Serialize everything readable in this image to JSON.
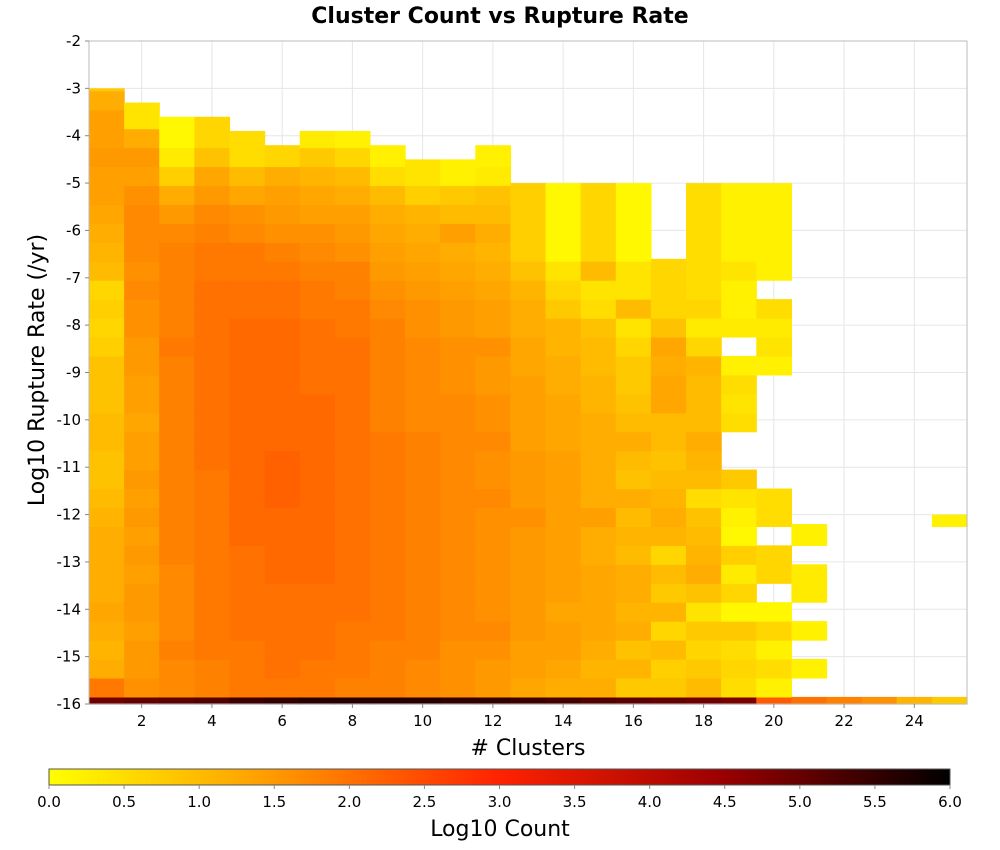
{
  "chart_data": {
    "type": "heatmap",
    "title": "Cluster Count vs Rupture Rate",
    "xlabel": "# Clusters",
    "ylabel": "Log10 Rupture Rate (/yr)",
    "colorbar_label": "Log10 Count",
    "xlim": [
      0.5,
      25.5
    ],
    "ylim": [
      -16,
      -2
    ],
    "x_ticks": [
      2,
      4,
      6,
      8,
      10,
      12,
      14,
      16,
      18,
      20,
      22,
      24
    ],
    "y_ticks": [
      -2,
      -3,
      -4,
      -5,
      -6,
      -7,
      -8,
      -9,
      -10,
      -11,
      -12,
      -13,
      -14,
      -15,
      -16
    ],
    "colorbar_ticks": [
      "0.0",
      "0.5",
      "1.0",
      "1.5",
      "2.0",
      "2.5",
      "3.0",
      "3.5",
      "4.0",
      "4.5",
      "5.0",
      "5.5",
      "6.0"
    ],
    "color_range": [
      0,
      6
    ],
    "colormap": [
      "#ffff00",
      "#ff9900",
      "#ff2200",
      "#990000",
      "#000000"
    ],
    "grid": true,
    "y_bin_width": 0.4,
    "columns": [
      {
        "x": 1,
        "ymax": -3.0,
        "values": [
          4.9,
          1.9,
          1.2,
          1.1,
          1.2,
          1.3,
          1.2,
          1.2,
          1.2,
          1.2,
          1.1,
          1.0,
          0.9,
          0.9,
          1.0,
          1.0,
          0.9,
          0.9,
          0.9,
          0.7,
          0.6,
          0.7,
          0.6,
          1.0,
          1.1,
          1.2,
          1.3,
          1.4,
          1.4,
          1.5,
          1.4,
          1.4,
          1.2,
          0.8,
          0.3
        ]
      },
      {
        "x": 2,
        "ymax": -3.3,
        "values": [
          5.0,
          1.6,
          1.5,
          1.5,
          1.4,
          1.5,
          1.5,
          1.4,
          1.5,
          1.4,
          1.5,
          1.4,
          1.5,
          1.4,
          1.4,
          1.3,
          1.4,
          1.4,
          1.5,
          1.5,
          1.6,
          1.6,
          1.7,
          1.6,
          1.7,
          1.7,
          1.7,
          1.6,
          1.4,
          1.5,
          1.2,
          0.4
        ]
      },
      {
        "x": 3,
        "ymax": -3.6,
        "values": [
          5.1,
          1.7,
          1.7,
          1.8,
          1.7,
          1.7,
          1.7,
          1.7,
          1.8,
          1.8,
          1.8,
          1.8,
          1.8,
          1.8,
          1.8,
          1.8,
          1.8,
          1.8,
          1.8,
          1.9,
          1.8,
          1.8,
          1.8,
          1.8,
          1.8,
          1.7,
          1.5,
          1.2,
          0.7,
          0.3,
          0.1
        ]
      },
      {
        "x": 4,
        "ymax": -3.6,
        "values": [
          5.2,
          1.8,
          1.8,
          1.9,
          1.9,
          1.9,
          1.9,
          1.9,
          1.9,
          1.9,
          1.9,
          1.9,
          1.9,
          2.0,
          2.0,
          2.0,
          2.0,
          2.0,
          2.0,
          2.0,
          2.0,
          2.0,
          2.0,
          1.9,
          1.9,
          1.8,
          1.7,
          1.5,
          1.3,
          0.9,
          0.6
        ]
      },
      {
        "x": 5,
        "ymax": -3.9,
        "values": [
          5.4,
          1.9,
          1.9,
          1.9,
          2.0,
          2.0,
          2.0,
          2.0,
          2.0,
          2.1,
          2.1,
          2.1,
          2.1,
          2.1,
          2.1,
          2.1,
          2.1,
          2.1,
          2.1,
          2.1,
          2.1,
          2.0,
          2.0,
          1.9,
          1.9,
          1.7,
          1.6,
          1.3,
          1.0,
          0.5
        ]
      },
      {
        "x": 6,
        "ymax": -4.2,
        "values": [
          5.5,
          1.9,
          2.0,
          2.0,
          2.0,
          2.0,
          2.0,
          2.1,
          2.1,
          2.1,
          2.1,
          2.2,
          2.2,
          2.2,
          2.1,
          2.1,
          2.1,
          2.1,
          2.1,
          2.1,
          2.1,
          2.0,
          2.0,
          1.9,
          1.8,
          1.6,
          1.5,
          1.4,
          1.2,
          0.6
        ]
      },
      {
        "x": 7,
        "ymax": -3.9,
        "values": [
          5.6,
          1.9,
          1.9,
          2.0,
          2.0,
          2.0,
          2.0,
          2.1,
          2.1,
          2.1,
          2.1,
          2.1,
          2.1,
          2.1,
          2.1,
          2.1,
          2.1,
          2.0,
          2.0,
          2.0,
          2.0,
          1.9,
          1.9,
          1.8,
          1.7,
          1.6,
          1.4,
          1.3,
          1.1,
          0.8,
          0.3
        ]
      },
      {
        "x": 8,
        "ymax": -3.9,
        "values": [
          5.6,
          1.8,
          1.9,
          1.9,
          1.9,
          2.0,
          2.0,
          2.0,
          2.0,
          2.0,
          2.0,
          2.0,
          2.0,
          2.0,
          2.0,
          2.0,
          2.0,
          2.0,
          2.0,
          2.0,
          1.9,
          1.9,
          1.8,
          1.8,
          1.6,
          1.5,
          1.4,
          1.2,
          1.0,
          0.6,
          0.2
        ]
      },
      {
        "x": 9,
        "ymax": -4.2,
        "values": [
          5.6,
          1.8,
          1.8,
          1.8,
          1.9,
          1.9,
          1.9,
          1.9,
          1.9,
          1.9,
          1.9,
          1.9,
          1.9,
          1.9,
          1.9,
          1.8,
          1.8,
          1.8,
          1.8,
          1.8,
          1.8,
          1.7,
          1.6,
          1.5,
          1.4,
          1.3,
          1.2,
          1.0,
          0.5,
          0.2
        ]
      },
      {
        "x": 10,
        "ymax": -4.5,
        "values": [
          5.6,
          1.7,
          1.7,
          1.8,
          1.8,
          1.8,
          1.8,
          1.8,
          1.8,
          1.8,
          1.8,
          1.8,
          1.8,
          1.8,
          1.8,
          1.7,
          1.7,
          1.7,
          1.7,
          1.7,
          1.6,
          1.6,
          1.5,
          1.4,
          1.3,
          1.2,
          1.1,
          0.7,
          0.4
        ]
      },
      {
        "x": 11,
        "ymax": -4.5,
        "values": [
          5.5,
          1.6,
          1.6,
          1.6,
          1.7,
          1.7,
          1.7,
          1.7,
          1.7,
          1.7,
          1.7,
          1.7,
          1.7,
          1.7,
          1.7,
          1.7,
          1.7,
          1.6,
          1.6,
          1.6,
          1.5,
          1.5,
          1.4,
          1.3,
          1.2,
          1.4,
          1.0,
          0.8,
          0.2
        ]
      },
      {
        "x": 12,
        "ymax": -4.2,
        "values": [
          5.5,
          1.5,
          1.5,
          1.6,
          1.7,
          1.6,
          1.6,
          1.6,
          1.6,
          1.6,
          1.6,
          1.7,
          1.6,
          1.6,
          1.7,
          1.6,
          1.6,
          1.5,
          1.5,
          1.6,
          1.4,
          1.4,
          1.3,
          1.2,
          1.1,
          1.2,
          1.0,
          0.9,
          0.3,
          0.2
        ]
      },
      {
        "x": 13,
        "ymax": -5.0,
        "values": [
          5.4,
          1.3,
          1.4,
          1.4,
          1.5,
          1.5,
          1.5,
          1.5,
          1.5,
          1.5,
          1.6,
          1.5,
          1.5,
          1.5,
          1.4,
          1.4,
          1.4,
          1.4,
          1.3,
          1.3,
          1.2,
          1.2,
          1.1,
          0.9,
          0.7
        ]
      },
      {
        "x": 14,
        "ymax": -5.0,
        "values": [
          5.3,
          1.2,
          1.3,
          1.4,
          1.4,
          1.3,
          1.4,
          1.4,
          1.4,
          1.4,
          1.4,
          1.4,
          1.4,
          1.4,
          1.3,
          1.3,
          1.3,
          1.2,
          1.2,
          1.1,
          1.1,
          0.8,
          0.6,
          0.4,
          0.1
        ]
      },
      {
        "x": 15,
        "ymax": -5.0,
        "values": [
          5.2,
          1.2,
          1.1,
          1.2,
          1.3,
          1.3,
          1.3,
          1.3,
          1.2,
          1.2,
          1.4,
          1.2,
          1.2,
          1.2,
          1.2,
          1.2,
          1.1,
          1.1,
          1.0,
          1.0,
          0.9,
          0.5,
          0.4,
          1.0,
          0.6
        ]
      },
      {
        "x": 16,
        "ymax": -5.0,
        "values": [
          5.1,
          0.8,
          1.1,
          0.9,
          1.2,
          1.1,
          1.2,
          1.2,
          1.0,
          1.1,
          1.0,
          1.2,
          0.9,
          1.0,
          1.2,
          1.0,
          0.9,
          0.8,
          0.8,
          0.6,
          0.4,
          1.0,
          0.4,
          0.4,
          0.1
        ]
      },
      {
        "x": 17,
        "ymax": -6.6,
        "values": [
          5.0,
          0.8,
          0.7,
          1.0,
          0.6,
          1.1,
          0.8,
          1.0,
          0.6,
          1.1,
          1.2,
          1.1,
          1.0,
          0.9,
          1.0,
          1.0,
          1.3,
          1.3,
          1.2,
          1.3,
          0.9,
          0.6
        ]
      },
      {
        "x": 18,
        "ymax": -5.0,
        "values": [
          4.9,
          1.0,
          0.8,
          0.6,
          0.8,
          0.4,
          0.9,
          1.2,
          1.1,
          1.0,
          0.9,
          0.5,
          1.0,
          1.1,
          1.2,
          1.0,
          1.0,
          1.0,
          1.1,
          0.6,
          0.3,
          0.6,
          0.5,
          0.5,
          0.5
        ]
      },
      {
        "x": 19,
        "ymax": -5.0,
        "values": [
          4.8,
          0.5,
          0.6,
          0.5,
          0.8,
          0.1,
          0.6,
          0.3,
          0.7,
          0.1,
          0.2,
          0.4,
          0.8,
          null,
          null,
          0.5,
          0.4,
          0.5,
          0.2,
          null,
          0.3,
          0.2,
          0.2,
          0.4,
          0.2
        ]
      },
      {
        "x": 20,
        "ymax": -5.0,
        "values": [
          2.3,
          0.2,
          0.5,
          0.2,
          0.6,
          0.1,
          null,
          0.6,
          0.6,
          null,
          0.5,
          0.5,
          null,
          null,
          null,
          null,
          null,
          null,
          0.2,
          0.4,
          0.3,
          0.5,
          null,
          0.2,
          0.2
        ]
      },
      {
        "x": 21,
        "ymax": -12.2,
        "values": [
          2.0,
          null,
          0.2,
          null,
          0.2,
          null,
          0.3,
          0.3,
          null,
          0.2
        ]
      },
      {
        "x": 22,
        "ymax": -16.0,
        "values": [
          1.8
        ]
      },
      {
        "x": 23,
        "ymax": -16.0,
        "values": [
          1.6
        ]
      },
      {
        "x": 24,
        "ymax": -16.0,
        "values": [
          1.1
        ]
      },
      {
        "x": 25,
        "ymax": -12.0,
        "values": [
          0.8,
          null,
          null,
          null,
          null,
          null,
          null,
          null,
          null,
          null,
          0.2
        ]
      }
    ]
  }
}
